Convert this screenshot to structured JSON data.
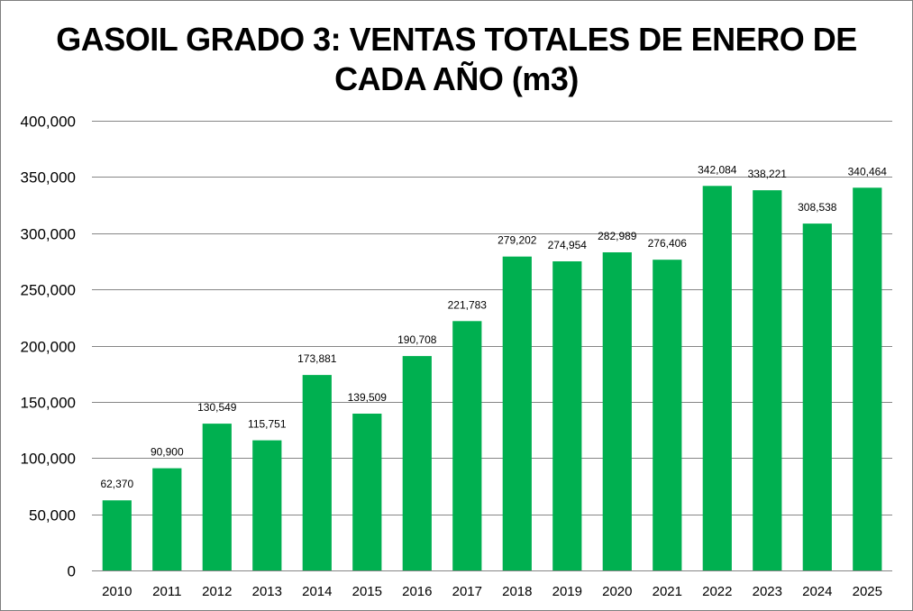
{
  "chart_data": {
    "type": "bar",
    "title": "GASOIL GRADO 3: VENTAS TOTALES DE ENERO DE\nCADA AÑO (m3)",
    "categories": [
      "2010",
      "2011",
      "2012",
      "2013",
      "2014",
      "2015",
      "2016",
      "2017",
      "2018",
      "2019",
      "2020",
      "2021",
      "2022",
      "2023",
      "2024",
      "2025"
    ],
    "values": [
      62370,
      90900,
      130549,
      115751,
      173881,
      139509,
      190708,
      221783,
      279202,
      274954,
      282989,
      276406,
      342084,
      338221,
      308538,
      340464
    ],
    "value_labels": [
      "62,370",
      "90,900",
      "130,549",
      "115,751",
      "173,881",
      "139,509",
      "190,708",
      "221,783",
      "279,202",
      "274,954",
      "282,989",
      "276,406",
      "342,084",
      "338,221",
      "308,538",
      "340,464"
    ],
    "ylim": [
      0,
      400000
    ],
    "yticks": [
      0,
      50000,
      100000,
      150000,
      200000,
      250000,
      300000,
      350000,
      400000
    ],
    "ytick_labels": [
      "0",
      "50,000",
      "100,000",
      "150,000",
      "200,000",
      "250,000",
      "300,000",
      "350,000",
      "400,000"
    ],
    "xlabel": "",
    "ylabel": "",
    "grid": true,
    "bar_color": "#00b050",
    "grid_color": "#868686"
  }
}
